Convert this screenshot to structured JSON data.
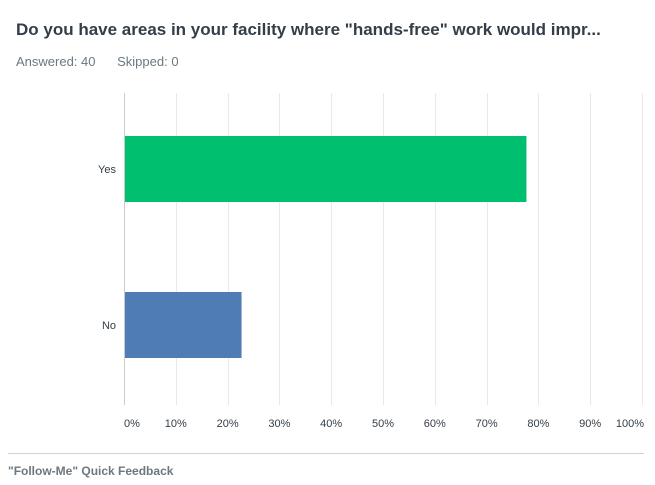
{
  "header": {
    "question": "Do you have areas in your facility where \"hands-free\" work would impr...",
    "answered": "Answered: 40",
    "skipped": "Skipped: 0"
  },
  "footer": {
    "survey_name": "\"Follow-Me\" Quick Feedback"
  },
  "colors": {
    "grid": "#e8e9ea",
    "axis": "#c9cbcc",
    "tick_text": "#333e48",
    "yes_bar": "#00bf6f",
    "no_bar": "#507cb6"
  },
  "chart_data": {
    "type": "bar",
    "orientation": "horizontal",
    "categories": [
      "Yes",
      "No"
    ],
    "values": [
      77.5,
      22.5
    ],
    "unit": "%",
    "xlim": [
      0,
      100
    ],
    "xticks": [
      "0%",
      "10%",
      "20%",
      "30%",
      "40%",
      "50%",
      "60%",
      "70%",
      "80%",
      "90%",
      "100%"
    ],
    "bar_colors": [
      "#00bf6f",
      "#507cb6"
    ],
    "grid": true,
    "legend": "none"
  }
}
